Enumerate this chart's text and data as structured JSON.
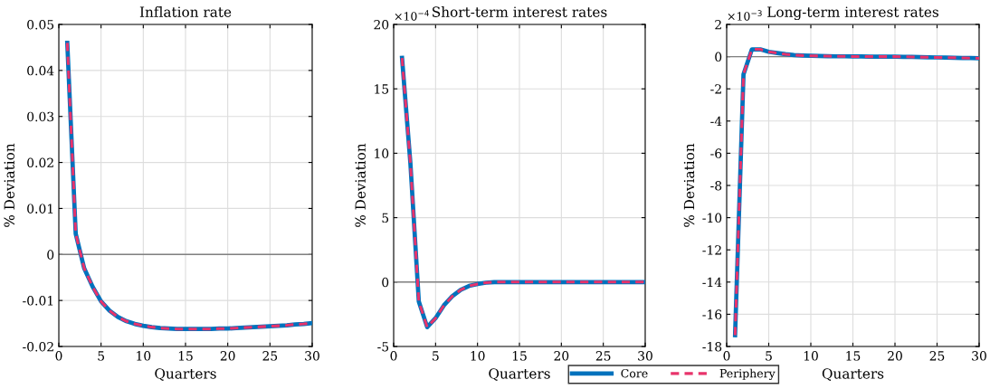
{
  "chart_data": [
    {
      "type": "line",
      "title": "Inflation rate",
      "xlabel": "Quarters",
      "ylabel": "% Deviation",
      "x": [
        1,
        2,
        3,
        4,
        5,
        6,
        7,
        8,
        9,
        10,
        11,
        12,
        13,
        14,
        15,
        16,
        17,
        18,
        19,
        20,
        21,
        22,
        23,
        24,
        25,
        26,
        27,
        28,
        29,
        30
      ],
      "xlim": [
        0,
        30
      ],
      "xticks": [
        0,
        5,
        10,
        15,
        20,
        25,
        30
      ],
      "ylim": [
        -0.02,
        0.05
      ],
      "yticks": [
        -0.02,
        -0.01,
        0,
        0.01,
        0.02,
        0.03,
        0.04,
        0.05
      ],
      "grid": true,
      "ref_lines": [
        {
          "axis": "y",
          "value": 0,
          "color": "#808080"
        }
      ],
      "series": [
        {
          "color": "#0072bd",
          "line_style": "solid",
          "values": [
            0.046,
            0.0045,
            -0.003,
            -0.007,
            -0.0102,
            -0.0122,
            -0.0136,
            -0.0145,
            -0.0151,
            -0.0155,
            -0.0158,
            -0.016,
            -0.0161,
            -0.0162,
            -0.0162,
            -0.0162,
            -0.0162,
            -0.0162,
            -0.0161,
            -0.0161,
            -0.016,
            -0.0159,
            -0.0158,
            -0.0157,
            -0.0156,
            -0.0155,
            -0.0154,
            -0.0152,
            -0.0151,
            -0.0149
          ]
        },
        {
          "color": "#e8336b",
          "line_style": "dashed",
          "values": [
            0.046,
            0.0045,
            -0.003,
            -0.007,
            -0.0102,
            -0.0122,
            -0.0136,
            -0.0145,
            -0.0151,
            -0.0155,
            -0.0158,
            -0.016,
            -0.0161,
            -0.0162,
            -0.0162,
            -0.0162,
            -0.0162,
            -0.0162,
            -0.0161,
            -0.0161,
            -0.016,
            -0.0159,
            -0.0158,
            -0.0157,
            -0.0156,
            -0.0155,
            -0.0154,
            -0.0152,
            -0.0151,
            -0.0149
          ]
        }
      ]
    },
    {
      "type": "line",
      "title": "Short-term interest rates",
      "xlabel": "Quarters",
      "ylabel": "% Deviation",
      "annotations": [
        "×10$^{−4}$"
      ],
      "x": [
        1,
        2,
        3,
        4,
        5,
        6,
        7,
        8,
        9,
        10,
        11,
        12,
        13,
        14,
        15,
        16,
        17,
        18,
        19,
        20,
        21,
        22,
        23,
        24,
        25,
        26,
        27,
        28,
        29,
        30
      ],
      "xlim": [
        0,
        30
      ],
      "xticks": [
        0,
        5,
        10,
        15,
        20,
        25,
        30
      ],
      "ylim": [
        -5,
        20
      ],
      "yticks": [
        -5,
        0,
        5,
        10,
        15,
        20
      ],
      "grid": true,
      "legend": "bottom",
      "ref_lines": [
        {
          "axis": "y",
          "value": 0,
          "color": "#808080"
        }
      ],
      "series": [
        {
          "name": "Core",
          "color": "#0072bd",
          "line_style": "solid",
          "values": [
            17.4,
            9.2,
            -1.5,
            -3.5,
            -2.8,
            -1.8,
            -1.1,
            -0.6,
            -0.3,
            -0.15,
            -0.05,
            0,
            0,
            0,
            0,
            0,
            0,
            0,
            0,
            0,
            0,
            0,
            0,
            0,
            0,
            0,
            0,
            0,
            0,
            0
          ]
        },
        {
          "name": "Periphery",
          "color": "#e8336b",
          "line_style": "dashed",
          "values": [
            17.4,
            9.2,
            -1.5,
            -3.5,
            -2.8,
            -1.8,
            -1.1,
            -0.6,
            -0.3,
            -0.15,
            -0.05,
            0,
            0,
            0,
            0,
            0,
            0,
            0,
            0,
            0,
            0,
            0,
            0,
            0,
            0,
            0,
            0,
            0,
            0,
            0
          ]
        }
      ]
    },
    {
      "type": "line",
      "title": "Long-term interest rates",
      "xlabel": "Quarters",
      "ylabel": "% Deviation",
      "annotations": [
        "×10$^{−3}$"
      ],
      "x": [
        1,
        2,
        3,
        4,
        5,
        6,
        7,
        8,
        9,
        10,
        11,
        12,
        13,
        14,
        15,
        16,
        17,
        18,
        19,
        20,
        21,
        22,
        23,
        24,
        25,
        26,
        27,
        28,
        29,
        30
      ],
      "xlim": [
        0,
        30
      ],
      "xticks": [
        0,
        5,
        10,
        15,
        20,
        25,
        30
      ],
      "ylim": [
        -18,
        2
      ],
      "yticks": [
        -18,
        -16,
        -14,
        -12,
        -10,
        -8,
        -6,
        -4,
        -2,
        0,
        2
      ],
      "grid": true,
      "ref_lines": [
        {
          "axis": "y",
          "value": 0,
          "color": "#808080"
        }
      ],
      "series": [
        {
          "color": "#0072bd",
          "line_style": "solid",
          "values": [
            -17.3,
            -1.1,
            0.45,
            0.45,
            0.3,
            0.22,
            0.15,
            0.1,
            0.07,
            0.05,
            0.04,
            0.03,
            0.02,
            0.02,
            0.01,
            0.01,
            0,
            0,
            0,
            0,
            -0.01,
            -0.02,
            -0.03,
            -0.04,
            -0.05,
            -0.06,
            -0.07,
            -0.08,
            -0.09,
            -0.1
          ]
        },
        {
          "color": "#e8336b",
          "line_style": "dashed",
          "values": [
            -17.3,
            -1.1,
            0.45,
            0.45,
            0.3,
            0.22,
            0.15,
            0.1,
            0.07,
            0.05,
            0.04,
            0.03,
            0.02,
            0.02,
            0.01,
            0.01,
            0,
            0,
            0,
            0,
            -0.01,
            -0.02,
            -0.03,
            -0.04,
            -0.05,
            -0.06,
            -0.07,
            -0.08,
            -0.09,
            -0.1
          ]
        }
      ]
    }
  ]
}
